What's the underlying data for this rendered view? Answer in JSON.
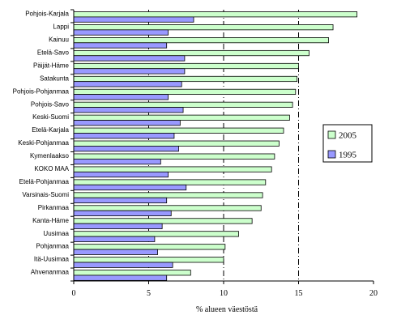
{
  "chart_data": {
    "type": "bar",
    "orientation": "horizontal",
    "categories": [
      "Pohjois-Karjala",
      "Lappi",
      "Kainuu",
      "Etelä-Savo",
      "Päijät-Häme",
      "Satakunta",
      "Pohjois-Pohjanmaa",
      "Pohjois-Savo",
      "Keski-Suomi",
      "Etelä-Karjala",
      "Keski-Pohjanmaa",
      "Kymenlaakso",
      "KOKO MAA",
      "Etelä-Pohjanmaa",
      "Varsinais-Suomi",
      "Pirkanmaa",
      "Kanta-Häme",
      "Uusimaa",
      "Pohjanmaa",
      "Itä-Uusimaa",
      "Ahvenanmaa"
    ],
    "series": [
      {
        "name": "2005",
        "color": "#ccffcc",
        "values": [
          18.9,
          17.3,
          17.0,
          15.7,
          15.0,
          14.9,
          14.8,
          14.6,
          14.4,
          14.0,
          13.7,
          13.4,
          13.2,
          12.8,
          12.6,
          12.5,
          11.9,
          11.0,
          10.1,
          10.0,
          7.8
        ]
      },
      {
        "name": "1995",
        "color": "#9999ff",
        "values": [
          8.0,
          6.3,
          6.2,
          7.4,
          7.4,
          7.2,
          6.3,
          7.3,
          7.1,
          6.7,
          7.0,
          5.8,
          6.3,
          7.5,
          6.2,
          6.5,
          5.9,
          5.4,
          5.6,
          6.6,
          6.2
        ]
      }
    ],
    "xlabel": "% alueen väestöstä",
    "xlim": [
      0,
      20
    ],
    "xticks": [
      "0",
      "5",
      "10",
      "15",
      "20"
    ],
    "gridlines": [
      5,
      10,
      15
    ],
    "legend": {
      "position": "right",
      "entries": [
        "2005",
        "1995"
      ]
    }
  }
}
